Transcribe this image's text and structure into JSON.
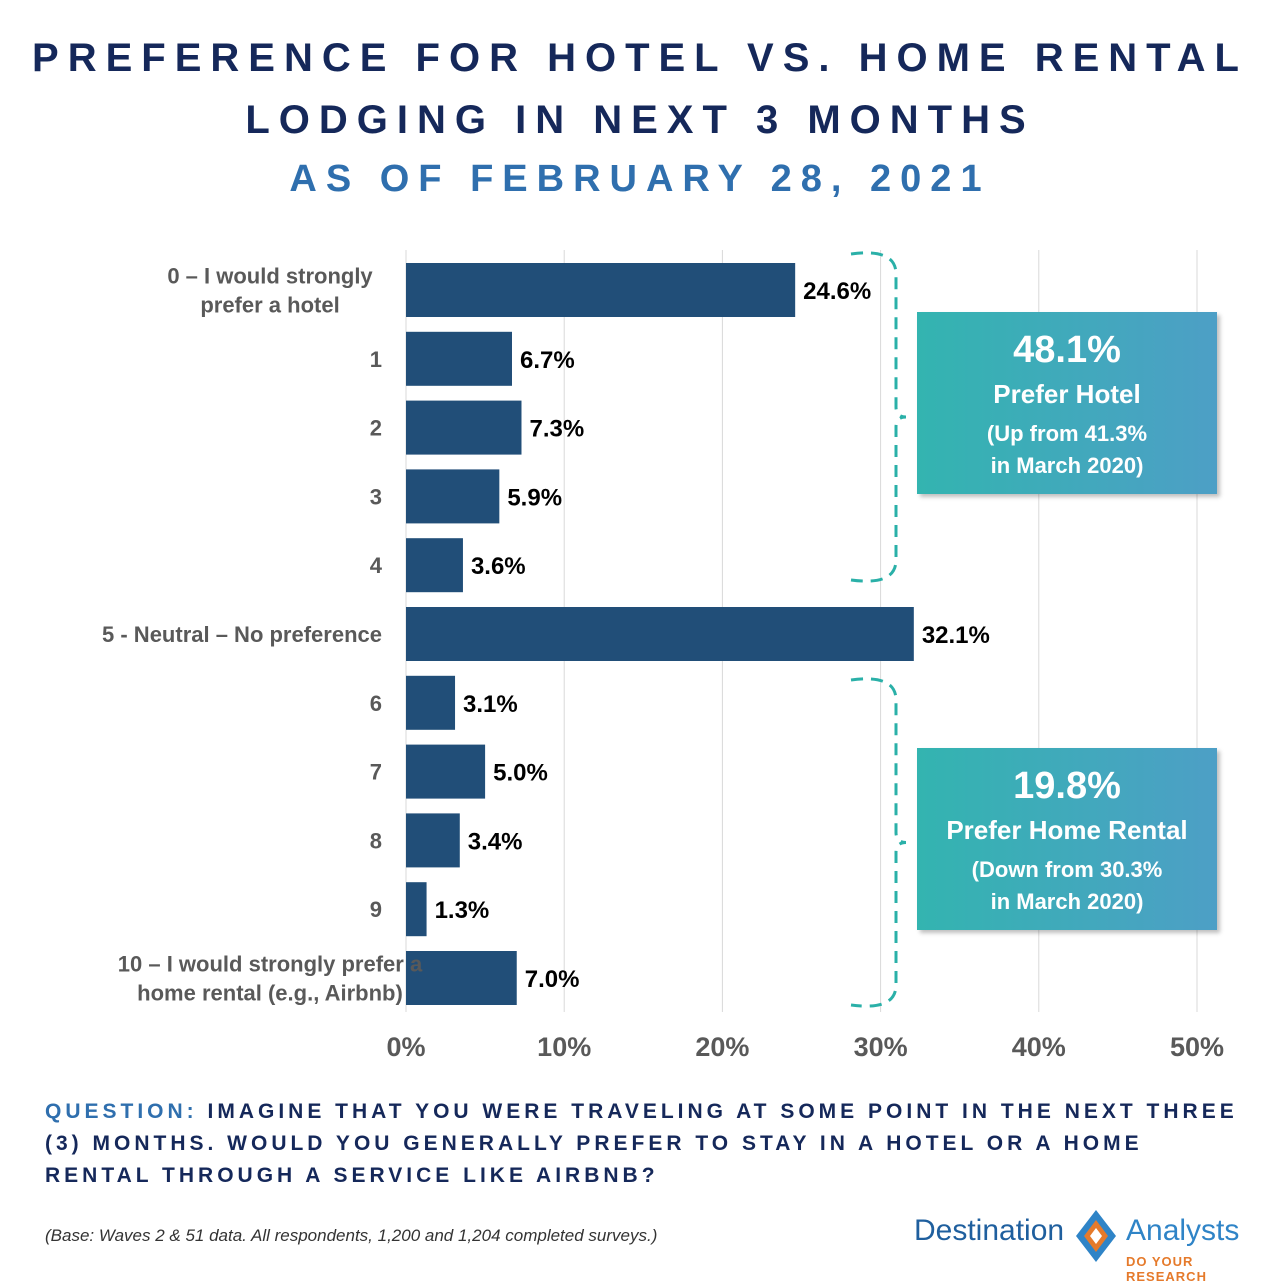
{
  "title_line1": "PREFERENCE FOR HOTEL VS. HOME RENTAL",
  "title_line2": "LODGING IN NEXT 3 MONTHS",
  "subtitle": "AS OF FEBRUARY 28, 2021",
  "chart_data": {
    "type": "bar",
    "orientation": "horizontal",
    "categories": [
      [
        "0 – I would strongly",
        "prefer a hotel"
      ],
      [
        "1"
      ],
      [
        "2"
      ],
      [
        "3"
      ],
      [
        "4"
      ],
      [
        "5 - Neutral – No preference"
      ],
      [
        "6"
      ],
      [
        "7"
      ],
      [
        "8"
      ],
      [
        "9"
      ],
      [
        "10 – I would strongly prefer a",
        "home rental (e.g., Airbnb)"
      ]
    ],
    "values": [
      24.6,
      6.7,
      7.3,
      5.9,
      3.6,
      32.1,
      3.1,
      5.0,
      3.4,
      1.3,
      7.0
    ],
    "value_labels": [
      "24.6%",
      "6.7%",
      "7.3%",
      "5.9%",
      "3.6%",
      "32.1%",
      "3.1%",
      "5.0%",
      "3.4%",
      "1.3%",
      "7.0%"
    ],
    "xlim": [
      0,
      50
    ],
    "xticks": [
      0,
      10,
      20,
      30,
      40,
      50
    ],
    "xtick_labels": [
      "0%",
      "10%",
      "20%",
      "30%",
      "40%",
      "50%"
    ],
    "grid": true,
    "bar_color": "#214e78",
    "grid_color": "#d9d9d9",
    "bracket_color": "#2ab0a8"
  },
  "callouts": {
    "hotel": {
      "pct": "48.1%",
      "label": "Prefer Hotel",
      "note_line1": "(Up from 41.3%",
      "note_line2": "in March 2020)"
    },
    "rental": {
      "pct": "19.8%",
      "label": "Prefer Home Rental",
      "note_line1": "(Down from 30.3%",
      "note_line2": "in March 2020)"
    }
  },
  "question": {
    "label": "QUESTION:",
    "text": "IMAGINE THAT YOU WERE TRAVELING AT SOME POINT IN THE NEXT THREE (3) MONTHS.  WOULD YOU GENERALLY PREFER TO STAY IN A HOTEL OR A HOME RENTAL THROUGH A SERVICE LIKE AIRBNB?"
  },
  "base_note": "(Base: Waves 2 & 51 data. All respondents, 1,200 and 1,204 completed surveys.)",
  "logo": {
    "left_text": "Destination",
    "right_text": "Analysts",
    "tagline": "DO YOUR RESEARCH",
    "colors": {
      "blue": "#1f5f9e",
      "orange": "#e57a2b",
      "light_blue": "#2f84c7"
    }
  }
}
